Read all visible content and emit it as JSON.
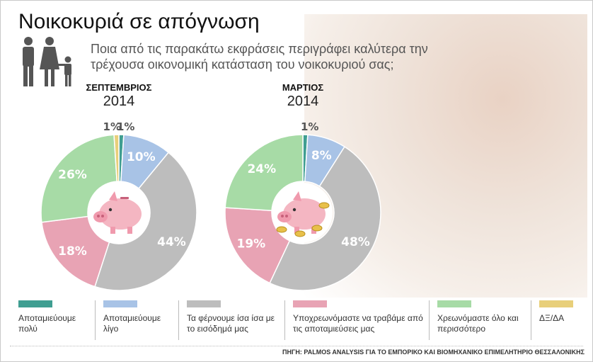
{
  "header": {
    "title": "Νοικοκυριά σε απόγνωση",
    "subtitle": "Ποια από τις παρακάτω εκφράσεις περιγράφει καλύτερα την τρέχουσα οικονομική κατάσταση του νοικοκυριού σας;"
  },
  "legend": [
    {
      "label": "Αποταμιεύουμε πολύ",
      "color": "#3f9e91"
    },
    {
      "label": "Αποταμιεύουμε λίγο",
      "color": "#a8c3e6"
    },
    {
      "label": "Τα φέρνουμε ίσα ίσα με το εισόδημά μας",
      "color": "#bdbdbd"
    },
    {
      "label": "Υποχρεωνόμαστε να τραβάμε από τις αποταμιεύσεις μας",
      "color": "#e8a3b4"
    },
    {
      "label": "Χρεωνόμαστε όλο και περισσότερο",
      "color": "#a7dba6"
    },
    {
      "label": "ΔΞ/ΔΑ",
      "color": "#e8cf7a"
    }
  ],
  "chart_data": [
    {
      "type": "pie",
      "month": "ΣΕΠΤΕΜΒΡΙΟΣ",
      "year": "2014",
      "slices": [
        {
          "category": "Αποταμιεύουμε πολύ",
          "value": 1,
          "label": "1%"
        },
        {
          "category": "Αποταμιεύουμε λίγο",
          "value": 10,
          "label": "10%"
        },
        {
          "category": "Τα φέρνουμε ίσα ίσα με το εισόδημά μας",
          "value": 44,
          "label": "44%"
        },
        {
          "category": "Υποχρεωνόμαστε να τραβάμε από τις αποταμιεύσεις μας",
          "value": 18,
          "label": "18%"
        },
        {
          "category": "Χρεωνόμαστε όλο και περισσότερο",
          "value": 26,
          "label": "26%"
        },
        {
          "category": "ΔΞ/ΔΑ",
          "value": 1,
          "label": "1%"
        }
      ]
    },
    {
      "type": "pie",
      "month": "ΜΑΡΤΙΟΣ",
      "year": "2014",
      "slices": [
        {
          "category": "Αποταμιεύουμε πολύ",
          "value": 1,
          "label": "1%"
        },
        {
          "category": "Αποταμιεύουμε λίγο",
          "value": 8,
          "label": "8%"
        },
        {
          "category": "Τα φέρνουμε ίσα ίσα με το εισόδημά μας",
          "value": 48,
          "label": "48%"
        },
        {
          "category": "Υποχρεωνόμαστε να τραβάμε από τις αποταμιεύσεις μας",
          "value": 19,
          "label": "19%"
        },
        {
          "category": "Χρεωνόμαστε όλο και περισσότερο",
          "value": 24,
          "label": "24%"
        }
      ]
    }
  ],
  "source": "ΠΗΓΗ: PALMOS ANALYSIS ΓΙΑ ΤΟ ΕΜΠΟΡΙΚΟ ΚΑΙ ΒΙΟΜΗΧΑΝΙΚΟ ΕΠΙΜΕΛΗΤΗΡΙΟ ΘΕΣΣΑΛΟΝΙΚΗΣ"
}
